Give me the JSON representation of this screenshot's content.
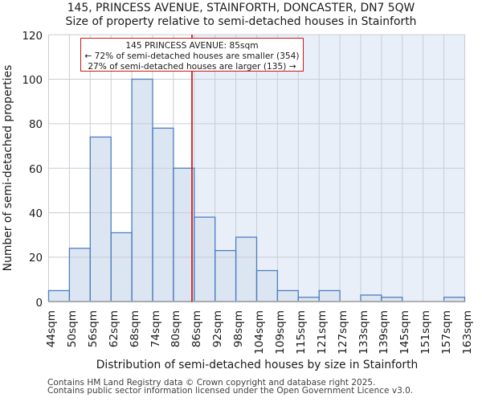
{
  "header": {
    "title": "145, PRINCESS AVENUE, STAINFORTH, DONCASTER, DN7 5QW",
    "subtitle": "Size of property relative to semi-detached houses in Stainforth"
  },
  "chart_data": {
    "type": "bar",
    "title": "145, PRINCESS AVENUE, STAINFORTH, DONCASTER, DN7 5QW",
    "subtitle": "Size of property relative to semi-detached houses in Stainforth",
    "xlabel": "Distribution of semi-detached houses by size in Stainforth",
    "ylabel": "Number of semi-detached properties",
    "categories": [
      "44sqm",
      "50sqm",
      "56sqm",
      "62sqm",
      "68sqm",
      "74sqm",
      "80sqm",
      "86sqm",
      "92sqm",
      "98sqm",
      "104sqm",
      "109sqm",
      "115sqm",
      "121sqm",
      "127sqm",
      "133sqm",
      "139sqm",
      "145sqm",
      "151sqm",
      "157sqm",
      "163sqm"
    ],
    "bin_edges_sqm": [
      44,
      50,
      56,
      62,
      68,
      74,
      80,
      86,
      92,
      98,
      104,
      109,
      115,
      121,
      127,
      133,
      139,
      145,
      151,
      157,
      163
    ],
    "values": [
      5,
      24,
      74,
      31,
      100,
      78,
      60,
      38,
      23,
      29,
      14,
      5,
      2,
      5,
      0,
      3,
      2,
      0,
      0,
      2
    ],
    "ylim": [
      0,
      120
    ],
    "yticks": [
      0,
      20,
      40,
      60,
      80,
      100,
      120
    ],
    "grid": true,
    "legend": false,
    "marker": {
      "sqm": 85,
      "axis_min_sqm": 44,
      "axis_max_sqm": 163
    },
    "annotation": {
      "line1": "145 PRINCESS AVENUE: 85sqm",
      "line2": "← 72% of semi-detached houses are smaller (354)",
      "line3": "27% of semi-detached houses are larger (135) →"
    }
  },
  "colors": {
    "bar_fill": "#dce5f2",
    "bar_fill_opacity": 1,
    "bar_edge": "#4d7fbe",
    "marker_line": "#cc1717",
    "annotation_border": "#cc1717",
    "annotation_bg": "#ffffff",
    "gridline": "#c9ccd3",
    "axis_line": "#a9a9a9",
    "shade_fill": "#e9eff9",
    "shade_opacity": 1,
    "text": "#1a1a1a",
    "footer_text": "#3f3f3f"
  },
  "footer": {
    "line1": "Contains HM Land Registry data © Crown copyright and database right 2025.",
    "line2": "Contains public sector information licensed under the Open Government Licence v3.0."
  }
}
